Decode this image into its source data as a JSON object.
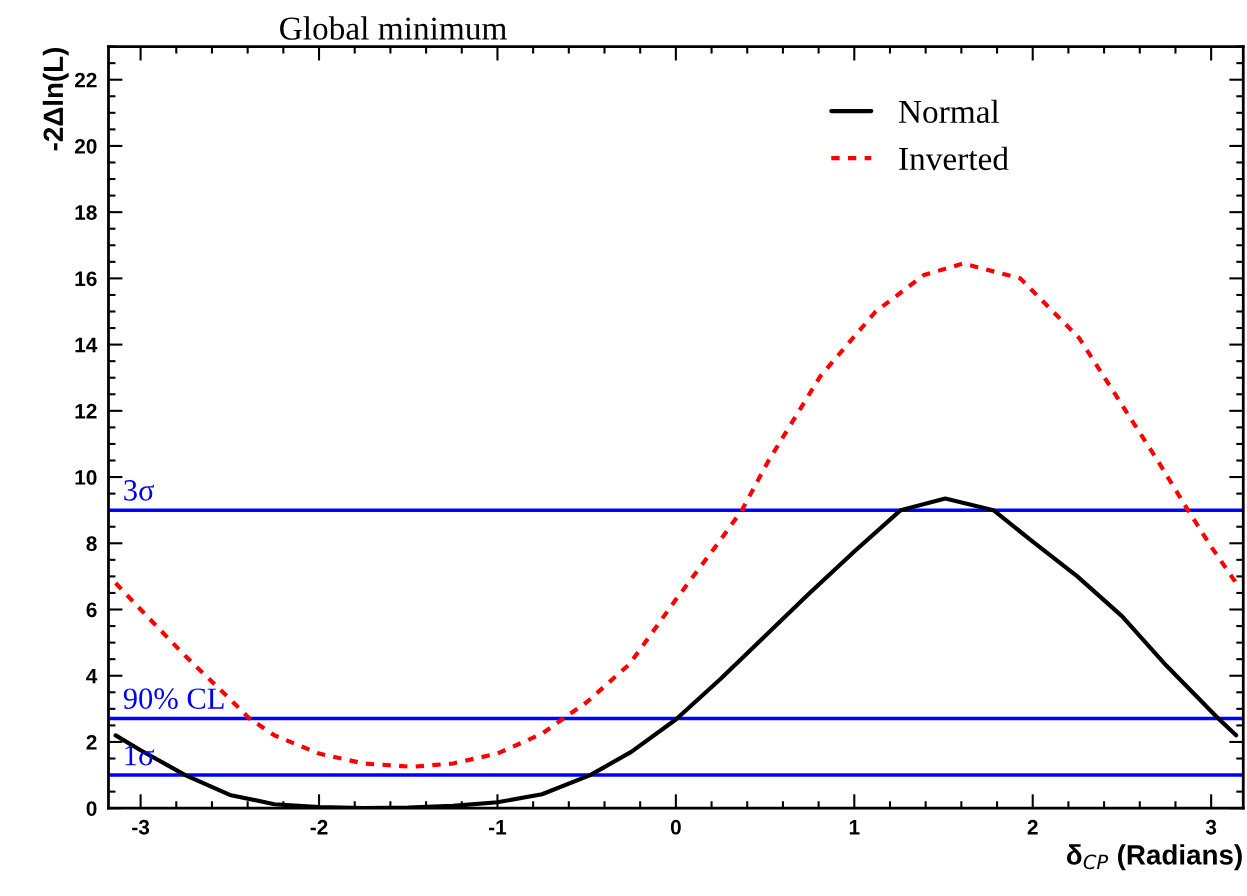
{
  "chart_data": {
    "type": "line",
    "title": "Global minimum",
    "xlabel": "δ$_{CP}$ (Radians)",
    "ylabel": "-2Δln(L)",
    "xlim": [
      -3.18,
      3.18
    ],
    "ylim": [
      0,
      23
    ],
    "xticks": [
      -3,
      -2,
      -1,
      0,
      1,
      2,
      3
    ],
    "yticks": [
      0,
      2,
      4,
      6,
      8,
      10,
      12,
      14,
      16,
      18,
      20,
      22
    ],
    "grid": false,
    "legend": "top right",
    "series": [
      {
        "name": "Normal",
        "color": "#000000",
        "line_style": "solid",
        "x": [
          -3.14,
          -3.0,
          -2.75,
          -2.5,
          -2.25,
          -2.0,
          -1.75,
          -1.5,
          -1.25,
          -1.0,
          -0.75,
          -0.48,
          -0.25,
          0,
          0.25,
          0.5,
          0.75,
          1.0,
          1.26,
          1.51,
          1.78,
          2.0,
          2.25,
          2.5,
          2.75,
          3.04,
          3.14
        ],
        "values": [
          2.2,
          1.75,
          1.0,
          0.4,
          0.12,
          0.03,
          0.0,
          0.02,
          0.07,
          0.18,
          0.42,
          1.0,
          1.7,
          2.68,
          3.9,
          5.2,
          6.5,
          7.75,
          9.0,
          9.35,
          9.0,
          8.05,
          7.0,
          5.8,
          4.3,
          2.71,
          2.2
        ]
      },
      {
        "name": "Inverted",
        "color": "#ff0000",
        "line_style": "dotted",
        "x": [
          -3.14,
          -3.0,
          -2.75,
          -2.5,
          -2.39,
          -2.25,
          -2.0,
          -1.75,
          -1.48,
          -1.25,
          -1.0,
          -0.75,
          -0.63,
          -0.5,
          -0.26,
          0,
          0.25,
          0.37,
          0.52,
          0.81,
          1.12,
          1.39,
          1.61,
          1.93,
          2.26,
          2.48,
          2.7,
          2.87,
          3.0,
          3.14
        ],
        "values": [
          6.8,
          6.0,
          4.6,
          3.3,
          2.71,
          2.2,
          1.65,
          1.35,
          1.25,
          1.35,
          1.65,
          2.25,
          2.71,
          3.2,
          4.35,
          6.3,
          8.1,
          9.0,
          10.5,
          13.05,
          15.0,
          16.1,
          16.45,
          16.0,
          14.2,
          12.35,
          10.5,
          9.0,
          7.9,
          6.8
        ]
      }
    ],
    "ref_lines": [
      {
        "axis": "y",
        "value": 9,
        "label": "3σ",
        "color": "#0000ff"
      },
      {
        "axis": "y",
        "value": 2.71,
        "label": "90% CL",
        "color": "#0000ff"
      },
      {
        "axis": "y",
        "value": 1,
        "label": "1σ",
        "color": "#0000ff"
      }
    ]
  }
}
